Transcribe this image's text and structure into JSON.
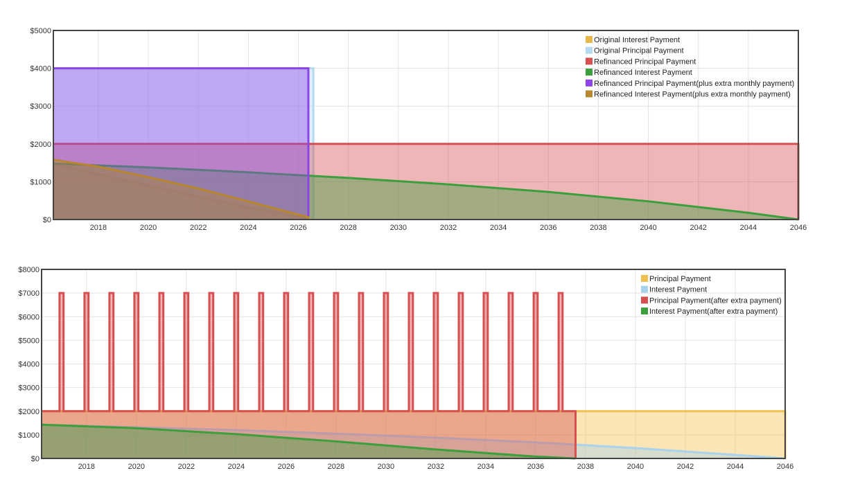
{
  "chart_data": [
    {
      "type": "area",
      "title": "",
      "xlabel": "",
      "ylabel": "",
      "xlim": [
        2016.2,
        2046.0
      ],
      "ylim": [
        0,
        5000
      ],
      "grid": true,
      "legend_position": "top-right",
      "x_ticks": [
        2018,
        2020,
        2022,
        2024,
        2026,
        2028,
        2030,
        2032,
        2034,
        2036,
        2038,
        2040,
        2042,
        2044,
        2046
      ],
      "y_ticks": [
        0,
        1000,
        2000,
        3000,
        4000,
        5000
      ],
      "y_tick_labels": [
        "$0",
        "$1000",
        "$2000",
        "$3000",
        "$4000",
        "$5000"
      ],
      "series": [
        {
          "name": "Original Interest Payment",
          "color": "#e8b84a",
          "x": [
            2016.2,
            2018,
            2020,
            2022,
            2024,
            2026.4,
            2026.4
          ],
          "y": [
            1460,
            1200,
            900,
            600,
            320,
            20,
            0
          ]
        },
        {
          "name": "Original Principal Payment",
          "color": "#b5d9f0",
          "x": [
            2016.2,
            2026.6,
            2026.6
          ],
          "y": [
            4000,
            4000,
            0
          ]
        },
        {
          "name": "Refinanced Principal Payment",
          "color": "#d65050",
          "x": [
            2016.2,
            2046.0,
            2046.0
          ],
          "y": [
            2000,
            2000,
            0
          ]
        },
        {
          "name": "Refinanced Interest Payment",
          "color": "#3c9e3c",
          "x": [
            2016.2,
            2020,
            2024,
            2028,
            2032,
            2036,
            2040,
            2044,
            2046
          ],
          "y": [
            1480,
            1380,
            1250,
            1100,
            930,
            730,
            480,
            180,
            0
          ]
        },
        {
          "name": "Refinanced Principal Payment(plus extra monthly payment)",
          "color": "#8c44e8",
          "x": [
            2016.2,
            2026.4,
            2026.4,
            2026.4
          ],
          "y": [
            4000,
            4000,
            2400,
            0
          ]
        },
        {
          "name": "Refinanced Interest Payment(plus extra monthly payment)",
          "color": "#b8862e",
          "x": [
            2016.2,
            2018,
            2020,
            2022,
            2024,
            2026.4,
            2026.4
          ],
          "y": [
            1580,
            1400,
            1120,
            820,
            480,
            60,
            0
          ]
        }
      ]
    },
    {
      "type": "area",
      "title": "",
      "xlabel": "",
      "ylabel": "",
      "xlim": [
        2016.2,
        2046.0
      ],
      "ylim": [
        0,
        8000
      ],
      "grid": true,
      "legend_position": "top-right",
      "x_ticks": [
        2018,
        2020,
        2022,
        2024,
        2026,
        2028,
        2030,
        2032,
        2034,
        2036,
        2038,
        2040,
        2042,
        2044,
        2046
      ],
      "y_ticks": [
        0,
        1000,
        2000,
        3000,
        4000,
        5000,
        6000,
        7000,
        8000
      ],
      "y_tick_labels": [
        "$0",
        "$1000",
        "$2000",
        "$3000",
        "$4000",
        "$5000",
        "$6000",
        "$7000",
        "$8000"
      ],
      "series": [
        {
          "name": "Principal Payment",
          "color": "#f0c050",
          "x": [
            2016.2,
            2046.0,
            2046.0
          ],
          "y": [
            2000,
            2000,
            0
          ]
        },
        {
          "name": "Interest Payment",
          "color": "#a9d2ec",
          "x": [
            2016.2,
            2020,
            2024,
            2028,
            2032,
            2036,
            2040,
            2044,
            2046
          ],
          "y": [
            1430,
            1320,
            1200,
            1050,
            880,
            680,
            440,
            150,
            0
          ]
        },
        {
          "name": "Principal Payment(after extra payment)",
          "color": "#d65050",
          "spike_years": [
            2017,
            2018,
            2019,
            2020,
            2021,
            2022,
            2023,
            2024,
            2025,
            2026,
            2027,
            2028,
            2029,
            2030,
            2031,
            2032,
            2033,
            2034,
            2035,
            2036,
            2037
          ],
          "spike_value": 7000,
          "base_value": 2000,
          "end_x": 2037.6,
          "end_value": 750
        },
        {
          "name": "Interest Payment(after extra payment)",
          "color": "#3c9e3c",
          "x": [
            2016.2,
            2020,
            2024,
            2028,
            2032,
            2036,
            2037.6
          ],
          "y": [
            1430,
            1280,
            1030,
            720,
            380,
            80,
            0
          ]
        }
      ]
    }
  ]
}
